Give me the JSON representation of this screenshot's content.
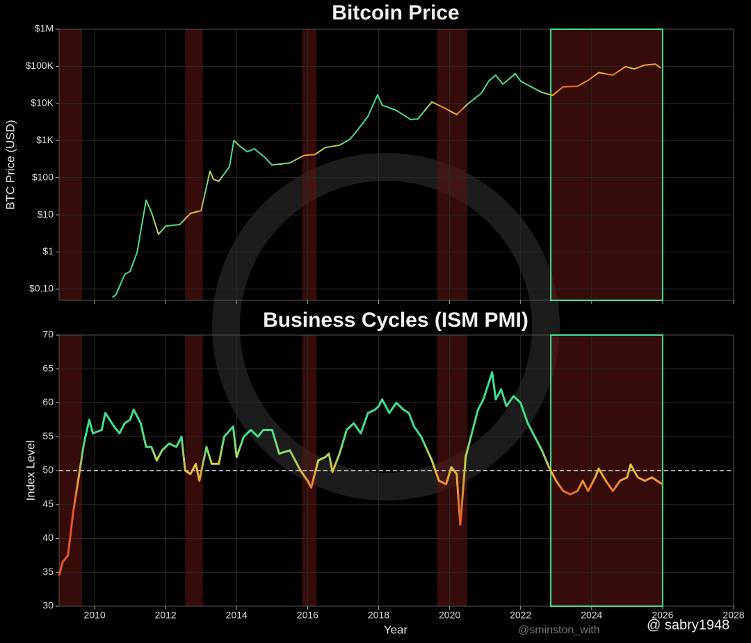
{
  "chart_data": [
    {
      "type": "line",
      "title": "Bitcoin Price",
      "ylabel": "BTC Price (USD)",
      "log_y": true,
      "sharex": true,
      "xlim": [
        2009,
        2028
      ],
      "ylim": [
        0.05,
        1000000
      ],
      "yticks": [
        {
          "value": 0.1,
          "label": "$0.10"
        },
        {
          "value": 1,
          "label": "$1"
        },
        {
          "value": 10,
          "label": "$10"
        },
        {
          "value": 100,
          "label": "$100"
        },
        {
          "value": 1000,
          "label": "$1K"
        },
        {
          "value": 10000,
          "label": "$10K"
        },
        {
          "value": 100000,
          "label": "$100K"
        },
        {
          "value": 1000000,
          "label": "$1M"
        }
      ],
      "grid": true,
      "shaded_regions": [
        [
          2009,
          2009.65
        ],
        [
          2012.55,
          2013.05
        ],
        [
          2015.85,
          2016.25
        ],
        [
          2019.65,
          2020.5
        ],
        [
          2022.85,
          2026
        ]
      ],
      "highlight_region": [
        2022.85,
        2026
      ],
      "highlight_color": "#3de08e",
      "shade_color": "#5a1410",
      "series": [
        {
          "name": "BTC Price",
          "color_by": "ISM PMI",
          "x": [
            2010.5,
            2010.6,
            2010.85,
            2011.0,
            2011.2,
            2011.45,
            2011.6,
            2011.8,
            2012.0,
            2012.4,
            2012.7,
            2013.0,
            2013.25,
            2013.35,
            2013.5,
            2013.8,
            2013.92,
            2014.1,
            2014.3,
            2014.5,
            2014.8,
            2015.0,
            2015.5,
            2015.9,
            2016.2,
            2016.5,
            2016.9,
            2017.2,
            2017.5,
            2017.7,
            2017.97,
            2018.1,
            2018.5,
            2018.9,
            2019.1,
            2019.5,
            2019.8,
            2020.2,
            2020.5,
            2020.9,
            2021.1,
            2021.3,
            2021.5,
            2021.85,
            2022.0,
            2022.4,
            2022.6,
            2022.9,
            2023.2,
            2023.6,
            2023.9,
            2024.2,
            2024.6,
            2024.95,
            2025.2,
            2025.5,
            2025.8,
            2025.95
          ],
          "values": [
            0.06,
            0.07,
            0.25,
            0.3,
            1,
            25,
            12,
            3,
            5,
            5.5,
            11,
            13,
            150,
            90,
            80,
            200,
            1000,
            700,
            500,
            600,
            350,
            220,
            250,
            400,
            420,
            650,
            750,
            1100,
            2500,
            4500,
            17000,
            9000,
            6500,
            3700,
            3800,
            11000,
            8000,
            5000,
            9500,
            19000,
            40000,
            58000,
            33000,
            63000,
            40000,
            25000,
            20000,
            16500,
            28000,
            29000,
            42000,
            68000,
            58000,
            98000,
            85000,
            108000,
            115000,
            90000
          ]
        }
      ]
    },
    {
      "type": "line",
      "title": "Business Cycles (ISM PMI)",
      "ylabel": "Index Level",
      "xlabel": "Year",
      "xlim": [
        2009,
        2028
      ],
      "xticks": [
        2010,
        2012,
        2014,
        2016,
        2018,
        2020,
        2022,
        2024,
        2026,
        2028
      ],
      "ylim": [
        30,
        70
      ],
      "yticks": [
        30,
        35,
        40,
        45,
        50,
        55,
        60,
        65,
        70
      ],
      "grid": true,
      "reference_line": 50,
      "shaded_regions": [
        [
          2009,
          2009.65
        ],
        [
          2012.55,
          2013.05
        ],
        [
          2015.85,
          2016.25
        ],
        [
          2019.65,
          2020.5
        ],
        [
          2022.85,
          2026
        ]
      ],
      "highlight_region": [
        2022.85,
        2026
      ],
      "highlight_color": "#3de08e",
      "shade_color": "#5a1410",
      "colormap": [
        "#e8552a",
        "#f0a030",
        "#d8d840",
        "#3de08e"
      ],
      "color_range": [
        46,
        54
      ],
      "series": [
        {
          "name": "ISM PMI",
          "x": [
            2009.0,
            2009.1,
            2009.25,
            2009.4,
            2009.55,
            2009.7,
            2009.85,
            2009.95,
            2010.2,
            2010.3,
            2010.55,
            2010.7,
            2010.85,
            2011.0,
            2011.1,
            2011.3,
            2011.45,
            2011.6,
            2011.75,
            2011.9,
            2012.1,
            2012.3,
            2012.45,
            2012.55,
            2012.7,
            2012.85,
            2012.95,
            2013.15,
            2013.3,
            2013.5,
            2013.65,
            2013.9,
            2014.0,
            2014.2,
            2014.4,
            2014.6,
            2014.75,
            2015.0,
            2015.2,
            2015.5,
            2015.8,
            2016.0,
            2016.1,
            2016.3,
            2016.5,
            2016.6,
            2016.7,
            2016.9,
            2017.1,
            2017.3,
            2017.5,
            2017.7,
            2017.9,
            2018.0,
            2018.1,
            2018.3,
            2018.5,
            2018.7,
            2018.85,
            2019.0,
            2019.2,
            2019.5,
            2019.7,
            2019.9,
            2020.05,
            2020.2,
            2020.3,
            2020.45,
            2020.65,
            2020.8,
            2020.95,
            2021.2,
            2021.3,
            2021.45,
            2021.6,
            2021.8,
            2022.0,
            2022.2,
            2022.4,
            2022.6,
            2022.8,
            2023.0,
            2023.2,
            2023.4,
            2023.6,
            2023.75,
            2023.9,
            2024.1,
            2024.2,
            2024.4,
            2024.6,
            2024.8,
            2025.0,
            2025.1,
            2025.3,
            2025.5,
            2025.7,
            2025.9,
            2026.0
          ],
          "values": [
            34.5,
            36.5,
            37.5,
            44,
            49,
            54,
            57.5,
            55.5,
            56,
            58.5,
            56.5,
            55.5,
            57,
            57.5,
            59,
            57,
            53.5,
            53.5,
            51.5,
            53,
            54,
            53.5,
            55,
            50,
            49.5,
            51,
            48.5,
            53.5,
            51,
            51,
            55,
            56.5,
            52,
            55,
            56,
            55,
            56,
            56,
            52.5,
            53,
            50,
            48.5,
            47.5,
            51.5,
            52,
            52.5,
            49.8,
            52.5,
            56,
            57,
            55.5,
            58.5,
            59,
            59.5,
            60.5,
            58.5,
            60,
            59,
            58.5,
            56.5,
            55,
            51.5,
            48.5,
            48,
            50.5,
            49.5,
            42,
            52,
            56,
            59,
            60.5,
            64.5,
            60.5,
            62,
            59.5,
            61,
            60,
            57,
            55,
            53,
            50.5,
            48.5,
            47,
            46.5,
            47,
            48.5,
            47,
            49,
            50.3,
            48.5,
            47,
            48.5,
            49,
            50.9,
            49,
            48.5,
            49,
            48.3,
            48
          ]
        }
      ]
    }
  ],
  "watermarks": [
    "@sminston_with",
    "@ sabry1948"
  ]
}
